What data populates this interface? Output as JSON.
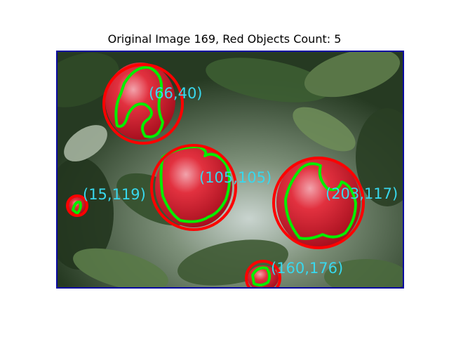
{
  "figure": {
    "title": "Original Image 169, Red Objects Count: 5"
  },
  "colors": {
    "frame_border": "#0a0aa0",
    "apple": "#d8283a",
    "detection_circle": "#ff0000",
    "contour": "#00ee00",
    "label_text": "#38d8ee"
  },
  "detections": [
    {
      "label": "(66,40)"
    },
    {
      "label": "(105,105)"
    },
    {
      "label": "(203,117)"
    },
    {
      "label": "(15,119)"
    },
    {
      "label": "(160,176)"
    }
  ]
}
